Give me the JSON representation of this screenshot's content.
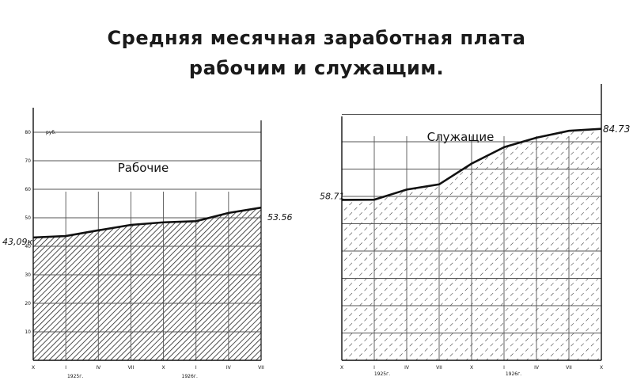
{
  "title_line1": "Средняя месячная заработная плата",
  "title_line2": "рабочим и служащим.",
  "chart_data": [
    {
      "type": "area",
      "title": "Рабочие",
      "unit_label": "руб.",
      "x": [
        "X",
        "I",
        "IV",
        "VII",
        "X",
        "I",
        "IV",
        "VII"
      ],
      "year_labels": [
        "1925г.",
        "1926г."
      ],
      "y_ticks": [
        10,
        20,
        30,
        40,
        50,
        60,
        70,
        80
      ],
      "ylim": [
        0,
        100
      ],
      "values": [
        43.09,
        43.6,
        45.6,
        47.5,
        48.4,
        48.8,
        51.7,
        53.56
      ],
      "start_label": "43,09к",
      "end_label": "53.56",
      "grid": true,
      "fill": "hatched"
    },
    {
      "type": "area",
      "title": "Служащие",
      "x": [
        "X",
        "I",
        "IV",
        "VII",
        "X",
        "I",
        "IV",
        "VII",
        "X"
      ],
      "year_labels": [
        "1925г.",
        "1926г."
      ],
      "values": [
        58.71,
        58.8,
        62.5,
        64.4,
        72.0,
        78.0,
        81.5,
        84.0,
        84.73
      ],
      "start_label": "58.71",
      "end_label": "84.73",
      "grid": true,
      "fill": "hatched"
    }
  ]
}
